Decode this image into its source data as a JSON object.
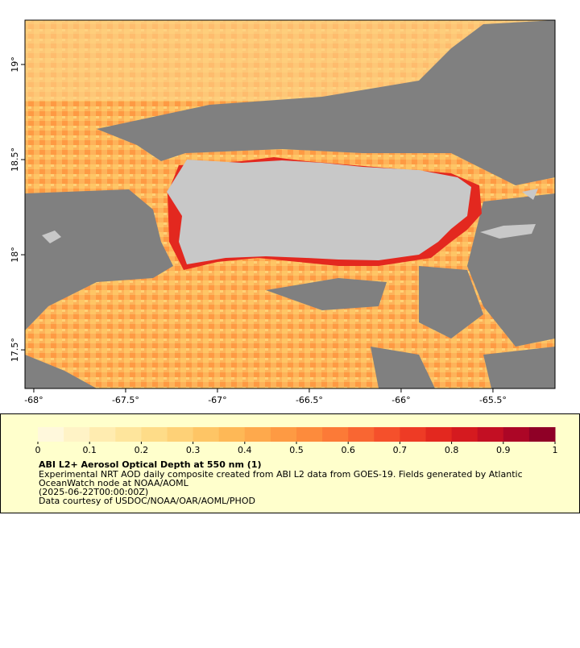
{
  "map": {
    "xlim": [
      -68.048,
      -65.162
    ],
    "ylim": [
      17.297,
      19.233
    ],
    "xticks": [
      {
        "value": -68,
        "label": "-68°"
      },
      {
        "value": -67.5,
        "label": "-67.5°"
      },
      {
        "value": -67,
        "label": "-67°"
      },
      {
        "value": -66.5,
        "label": "-66.5°"
      },
      {
        "value": -66,
        "label": "-66°"
      },
      {
        "value": -65.5,
        "label": "-65.5°"
      }
    ],
    "yticks": [
      {
        "value": 19,
        "label": "19°"
      },
      {
        "value": 18.5,
        "label": "18.5°"
      },
      {
        "value": 18,
        "label": "18°"
      },
      {
        "value": 17.5,
        "label": "17.5°"
      }
    ]
  },
  "colorbar": {
    "range": [
      0,
      1
    ],
    "ticks": [
      0,
      0.1,
      0.2,
      0.3,
      0.4,
      0.5,
      0.6,
      0.7,
      0.8,
      0.9,
      1
    ],
    "colors": [
      "#fff8dc",
      "#fff3c6",
      "#ffecb0",
      "#fee59c",
      "#fedc88",
      "#fed177",
      "#fec565",
      "#feb856",
      "#fea94c",
      "#fe9a43",
      "#fd8b3c",
      "#fc7a37",
      "#f96632",
      "#f5502b",
      "#ee3b25",
      "#e3281f",
      "#d51a1f",
      "#c30f23",
      "#ac0626",
      "#8f0026"
    ]
  },
  "caption": {
    "title": "ABI L2+ Aerosol Optical Depth at 550 nm (1)",
    "lines": [
      "Experimental NRT AOD daily composite created from ABI L2 data from GOES-19. Fields generated by Atlantic",
      "OceanWatch node at NOAA/AOML",
      "(2025-06-22T00:00:00Z)",
      "Data courtesy of USDOC/NOAA/OAR/AOML/PHOD"
    ]
  }
}
